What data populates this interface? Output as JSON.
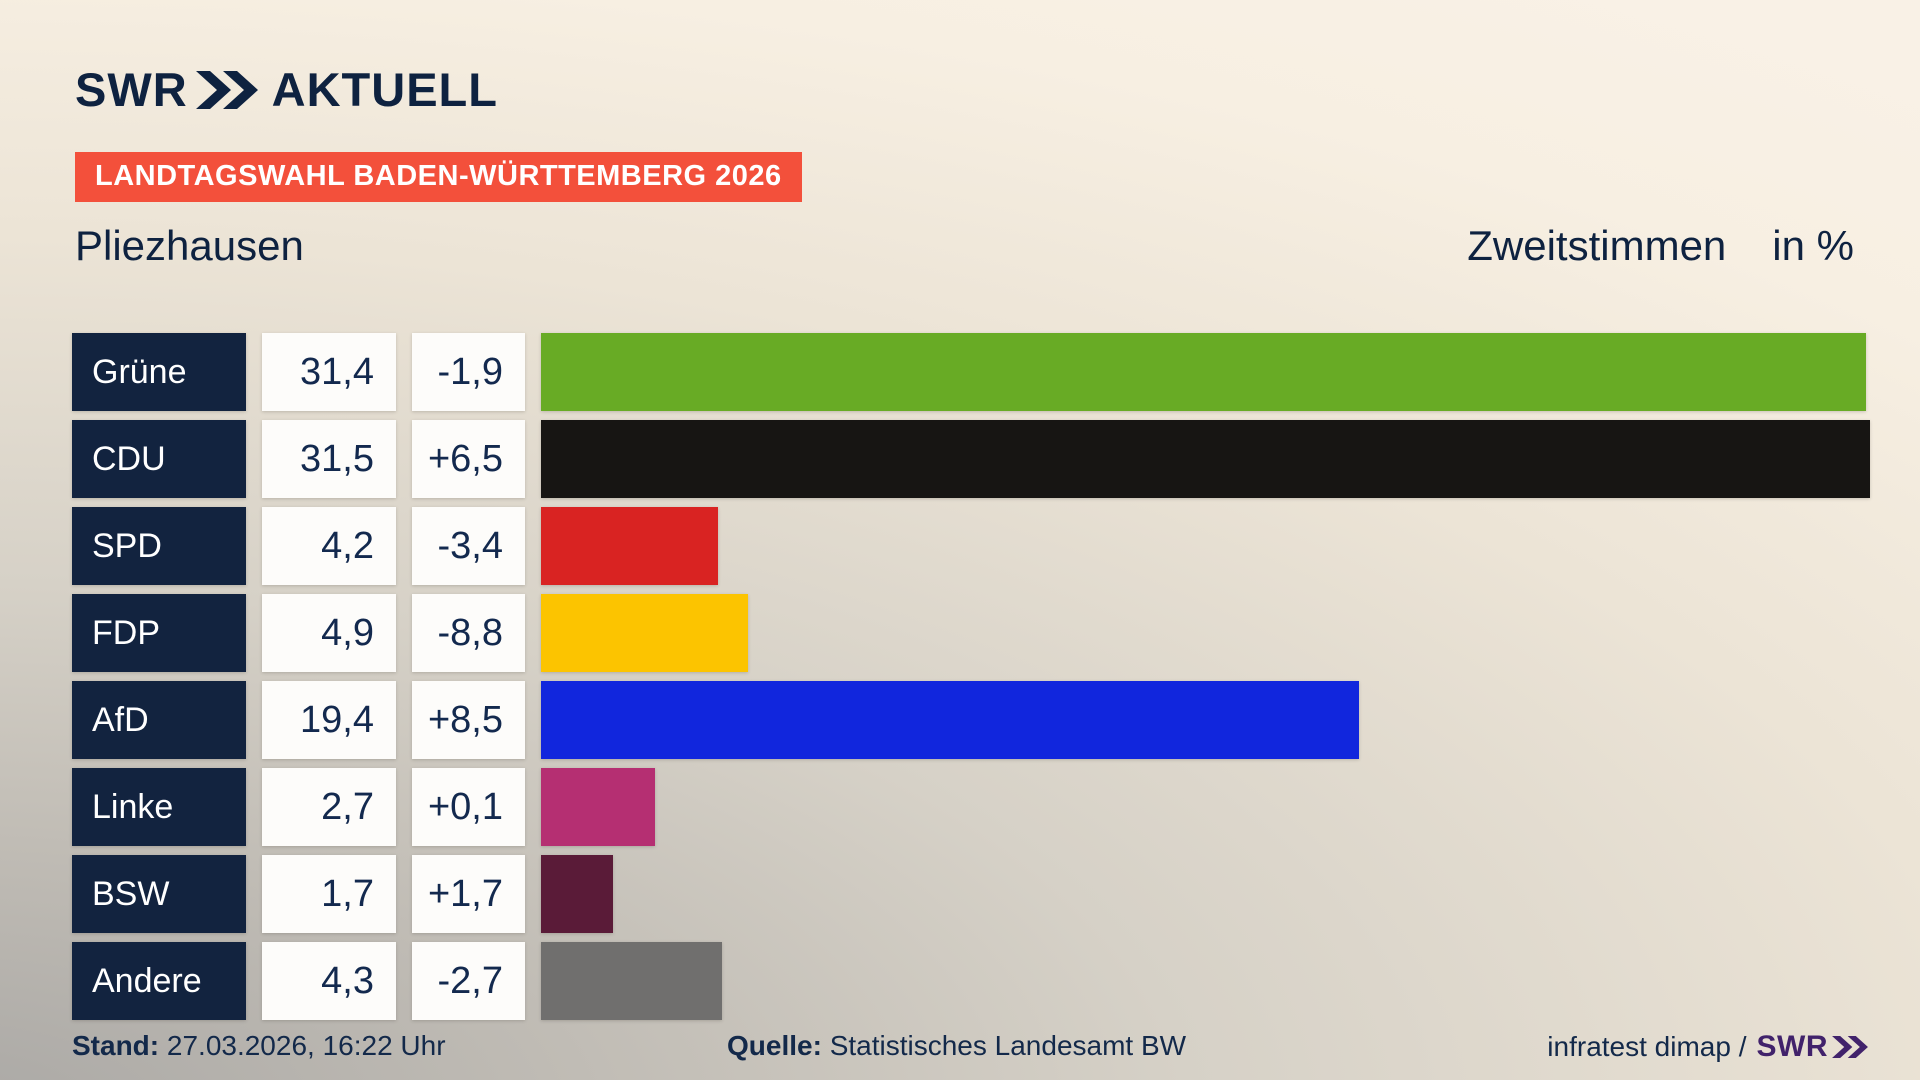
{
  "header": {
    "logo_brand": "SWR",
    "logo_suffix": "AKTUELL",
    "badge": "LANDTAGSWAHL BADEN-WÜRTTEMBERG 2026"
  },
  "title": {
    "location": "Pliezhausen",
    "measure": "Zweitstimmen",
    "unit": "in %"
  },
  "chart_data": {
    "type": "bar",
    "orientation": "horizontal",
    "title": "Pliezhausen — Zweitstimmen in %",
    "xlabel": "Zweitstimmen in %",
    "xlim": [
      0,
      31.5
    ],
    "grid": false,
    "rows": [
      {
        "party": "Grüne",
        "value": 31.4,
        "value_label": "31,4",
        "diff": -1.9,
        "diff_label": "-1,9",
        "color": "#68ab25"
      },
      {
        "party": "CDU",
        "value": 31.5,
        "value_label": "31,5",
        "diff": 6.5,
        "diff_label": "+6,5",
        "color": "#171513"
      },
      {
        "party": "SPD",
        "value": 4.2,
        "value_label": "4,2",
        "diff": -3.4,
        "diff_label": "-3,4",
        "color": "#d92322"
      },
      {
        "party": "FDP",
        "value": 4.9,
        "value_label": "4,9",
        "diff": -8.8,
        "diff_label": "-8,8",
        "color": "#fcc400"
      },
      {
        "party": "AfD",
        "value": 19.4,
        "value_label": "19,4",
        "diff": 8.5,
        "diff_label": "+8,5",
        "color": "#1126dd"
      },
      {
        "party": "Linke",
        "value": 2.7,
        "value_label": "2,7",
        "diff": 0.1,
        "diff_label": "+0,1",
        "color": "#b52f72"
      },
      {
        "party": "BSW",
        "value": 1.7,
        "value_label": "1,7",
        "diff": 1.7,
        "diff_label": "+1,7",
        "color": "#5a1b38"
      },
      {
        "party": "Andere",
        "value": 4.3,
        "value_label": "4,3",
        "diff": -2.7,
        "diff_label": "-2,7",
        "color": "#706f6e"
      }
    ]
  },
  "footer": {
    "stand_label": "Stand:",
    "stand_value": "27.03.2026, 16:22 Uhr",
    "quelle_label": "Quelle:",
    "quelle_value": "Statistisches Landesamt BW",
    "credit_text": "infratest dimap /",
    "credit_brand": "SWR"
  },
  "colors": {
    "brand_navy": "#0e2240",
    "badge_red": "#f3503b",
    "label_box_navy": "#12233f",
    "value_box_white": "#fdfcfa",
    "credit_purple": "#41226b",
    "background_cream": "#f7efe2",
    "background_gray": "#a9a7a4"
  }
}
